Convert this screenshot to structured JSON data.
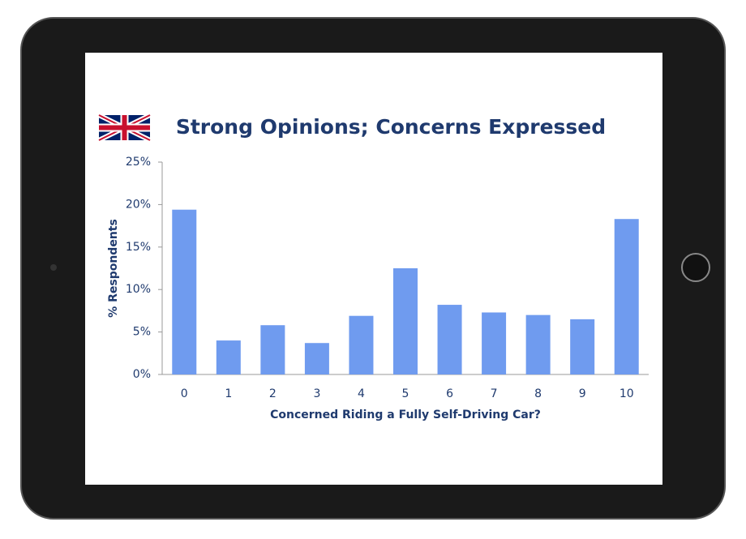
{
  "chart_data": {
    "type": "bar",
    "title": "Strong Opinions;  Concerns Expressed",
    "x_label": "Concerned  Riding a Fully Self-Driving Car?",
    "y_label": "% Respondents",
    "categories": [
      "0",
      "1",
      "2",
      "3",
      "4",
      "5",
      "6",
      "7",
      "8",
      "9",
      "10"
    ],
    "values": [
      19.4,
      4.0,
      5.8,
      3.7,
      6.9,
      12.5,
      8.2,
      7.3,
      7.0,
      6.5,
      18.3
    ],
    "color": "#6f9bef",
    "ylim": [
      0,
      25
    ],
    "yticks": [
      {
        "value": 0,
        "label": "0%"
      },
      {
        "value": 5,
        "label": "5%"
      },
      {
        "value": 10,
        "label": "10%"
      },
      {
        "value": 15,
        "label": "15%"
      },
      {
        "value": 20,
        "label": "20%"
      },
      {
        "value": 25,
        "label": "25%"
      }
    ]
  }
}
